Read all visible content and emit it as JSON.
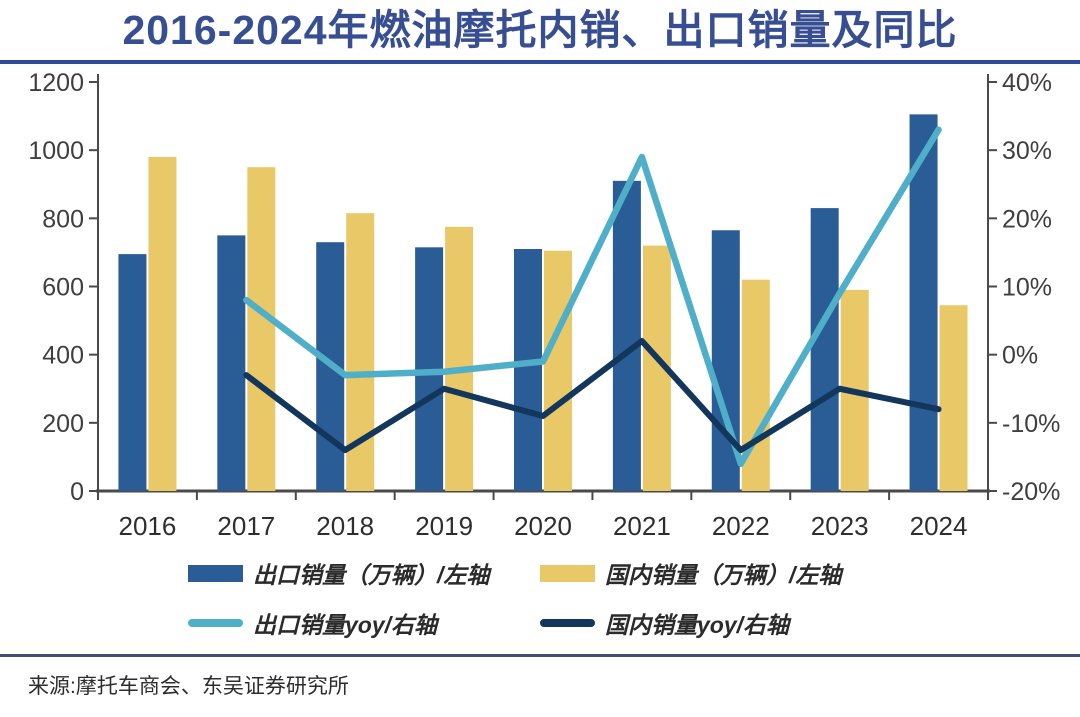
{
  "header": {
    "title": "2016-2024年燃油摩托内销、出口销量及同比"
  },
  "source": {
    "text": "来源:摩托车商会、东吴证券研究所"
  },
  "colors": {
    "title": "#374F92",
    "title_rule": "#2E4C9B",
    "export_bar": "#2A5C95",
    "domestic_bar": "#E9C868",
    "export_yoy_line": "#4FAFC9",
    "domestic_yoy_line": "#13365C",
    "axis": "#4A4A4A",
    "tick_text": "#3F3F3F",
    "year_text": "#2E2E2E",
    "bottom_rule": "#3E4F6F"
  },
  "chart_data": {
    "type": "bar",
    "subtype": "dual-axis bar + line combo",
    "title": "2016-2024年燃油摩托内销、出口销量及同比",
    "categories": [
      "2016",
      "2017",
      "2018",
      "2019",
      "2020",
      "2021",
      "2022",
      "2023",
      "2024"
    ],
    "left_axis": {
      "min": 0,
      "max": 1200,
      "step": 200,
      "labels": [
        "0",
        "200",
        "400",
        "600",
        "800",
        "1000",
        "1200"
      ]
    },
    "right_axis": {
      "min": -20,
      "max": 40,
      "step": 10,
      "labels": [
        "-20%",
        "-10%",
        "0%",
        "10%",
        "20%",
        "30%",
        "40%"
      ]
    },
    "grid": "off",
    "legend_position": "bottom",
    "series": [
      {
        "name": "出口销量（万辆）/左轴",
        "type": "bar",
        "axis": "left",
        "color_key": "export_bar",
        "values": [
          695,
          750,
          730,
          715,
          710,
          910,
          765,
          830,
          1105
        ]
      },
      {
        "name": "国内销量（万辆）/左轴",
        "type": "bar",
        "axis": "left",
        "color_key": "domestic_bar",
        "values": [
          980,
          950,
          815,
          775,
          705,
          720,
          620,
          590,
          545
        ]
      },
      {
        "name": "出口销量yoy/右轴",
        "type": "line",
        "axis": "right",
        "color_key": "export_yoy_line",
        "values": [
          null,
          8,
          -3,
          -2.5,
          -1,
          29,
          -16,
          9,
          33
        ]
      },
      {
        "name": "国内销量yoy/右轴",
        "type": "line",
        "axis": "right",
        "color_key": "domestic_yoy_line",
        "values": [
          null,
          -3,
          -14,
          -5,
          -9,
          2,
          -14,
          -5,
          -8
        ]
      }
    ]
  }
}
